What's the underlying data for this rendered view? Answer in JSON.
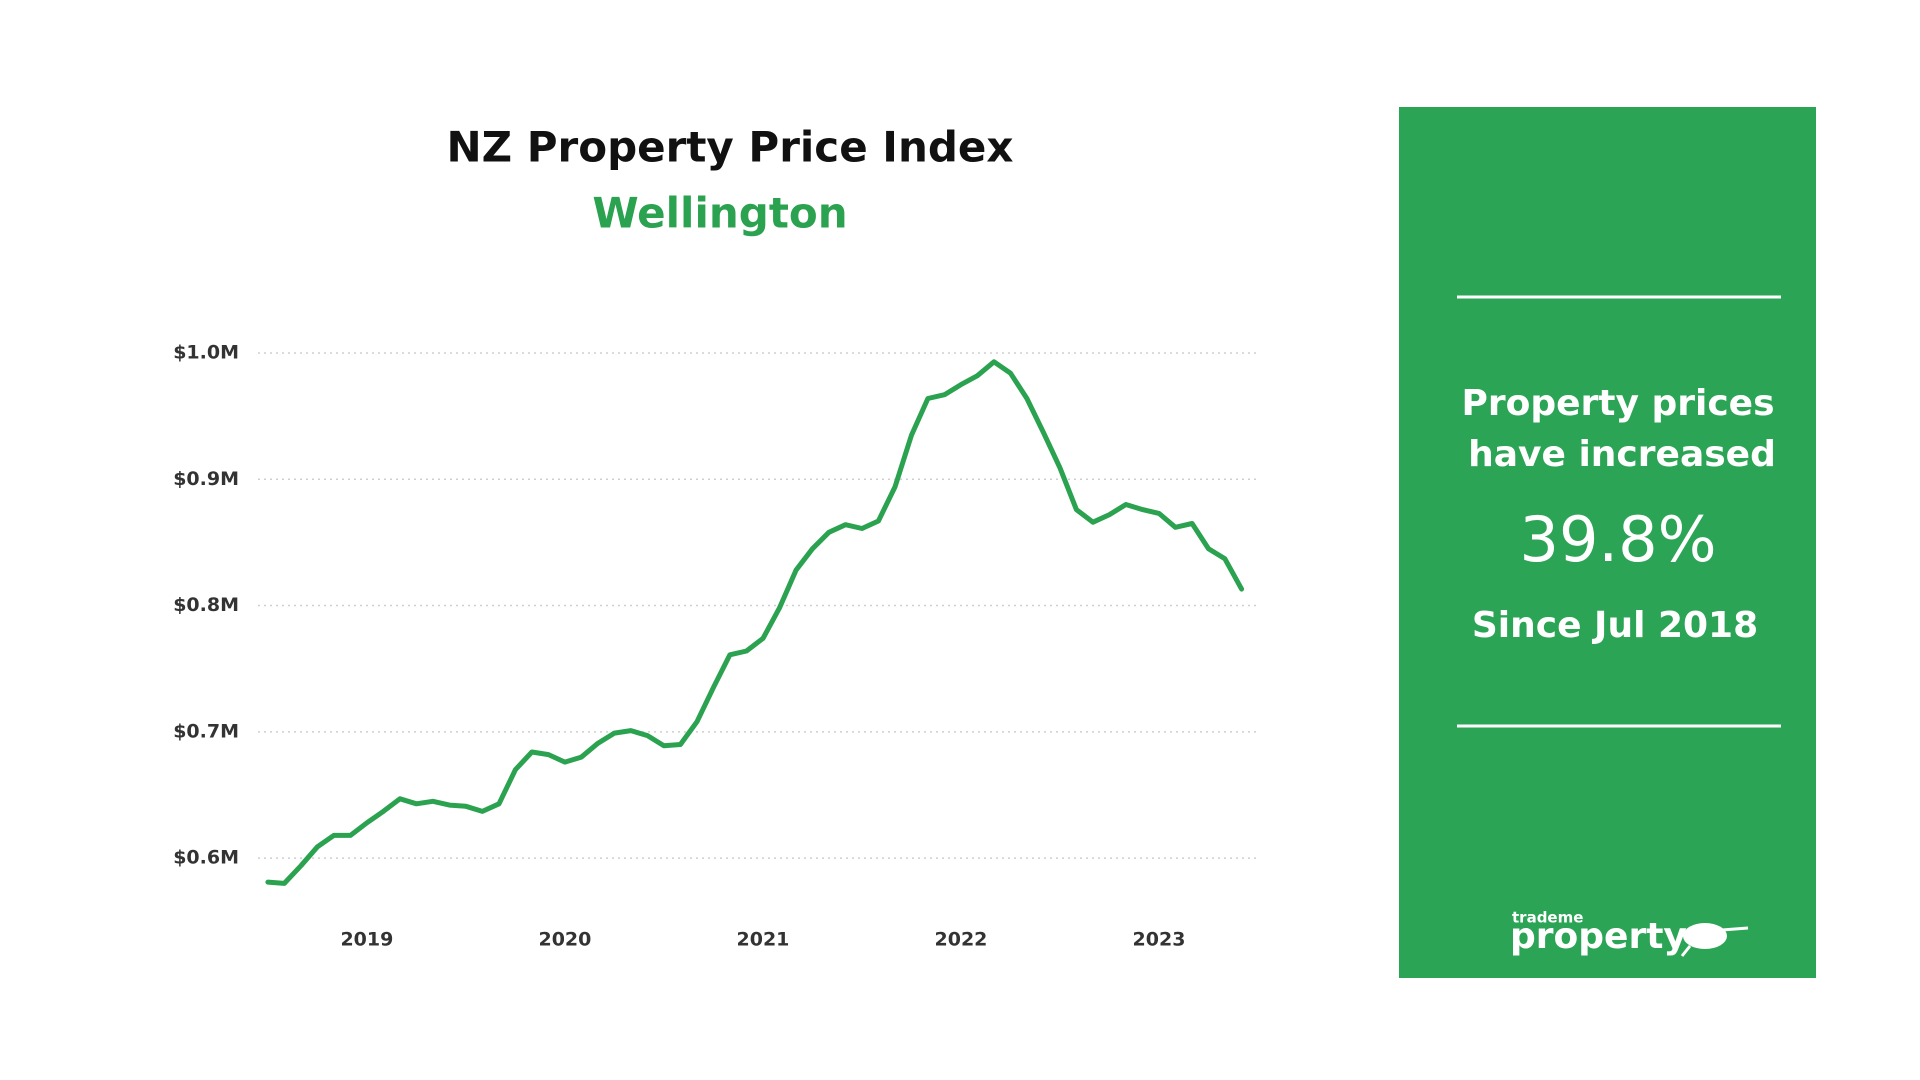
{
  "chart_data": {
    "type": "line",
    "title": "NZ Property Price Index",
    "subtitle": "Wellington",
    "x": [
      2018.5,
      2018.583,
      2018.667,
      2018.75,
      2018.833,
      2018.917,
      2019.0,
      2019.083,
      2019.167,
      2019.25,
      2019.333,
      2019.417,
      2019.5,
      2019.583,
      2019.667,
      2019.75,
      2019.833,
      2019.917,
      2020.0,
      2020.083,
      2020.167,
      2020.25,
      2020.333,
      2020.417,
      2020.5,
      2020.583,
      2020.667,
      2020.75,
      2020.833,
      2020.917,
      2021.0,
      2021.083,
      2021.167,
      2021.25,
      2021.333,
      2021.417,
      2021.5,
      2021.583,
      2021.667,
      2021.75,
      2021.833,
      2021.917,
      2022.0,
      2022.083,
      2022.167,
      2022.25,
      2022.333,
      2022.417,
      2022.5,
      2022.583,
      2022.667,
      2022.75,
      2022.833,
      2022.917,
      2023.0,
      2023.083,
      2023.167,
      2023.25,
      2023.333,
      2023.417
    ],
    "values": [
      0.581,
      0.58,
      0.594,
      0.609,
      0.618,
      0.618,
      0.628,
      0.637,
      0.647,
      0.643,
      0.645,
      0.642,
      0.641,
      0.637,
      0.643,
      0.67,
      0.684,
      0.682,
      0.676,
      0.68,
      0.691,
      0.699,
      0.701,
      0.697,
      0.689,
      0.69,
      0.708,
      0.735,
      0.761,
      0.764,
      0.774,
      0.798,
      0.828,
      0.845,
      0.858,
      0.864,
      0.861,
      0.867,
      0.894,
      0.935,
      0.964,
      0.967,
      0.975,
      0.982,
      0.993,
      0.984,
      0.964,
      0.937,
      0.909,
      0.876,
      0.866,
      0.872,
      0.88,
      0.876,
      0.873,
      0.862,
      0.865,
      0.845,
      0.837,
      0.813
    ],
    "color": "#2ba24f",
    "xlim": [
      2018.45,
      2023.5
    ],
    "xticks": [
      2019,
      2020,
      2021,
      2022,
      2023
    ],
    "ylim": [
      0.57,
      1.0
    ],
    "yticks": [
      {
        "value": 0.6,
        "label": "$0.6M"
      },
      {
        "value": 0.7,
        "label": "$0.7M"
      },
      {
        "value": 0.8,
        "label": "$0.8M"
      },
      {
        "value": 0.9,
        "label": "$0.9M"
      },
      {
        "value": 1.0,
        "label": "$1.0M"
      }
    ],
    "grid": true
  },
  "panel": {
    "headline": [
      "Property prices",
      "have increased"
    ],
    "change": "39.8%",
    "since": "Since Jul 2018",
    "logo_small": "trademe",
    "logo_big": "property"
  }
}
